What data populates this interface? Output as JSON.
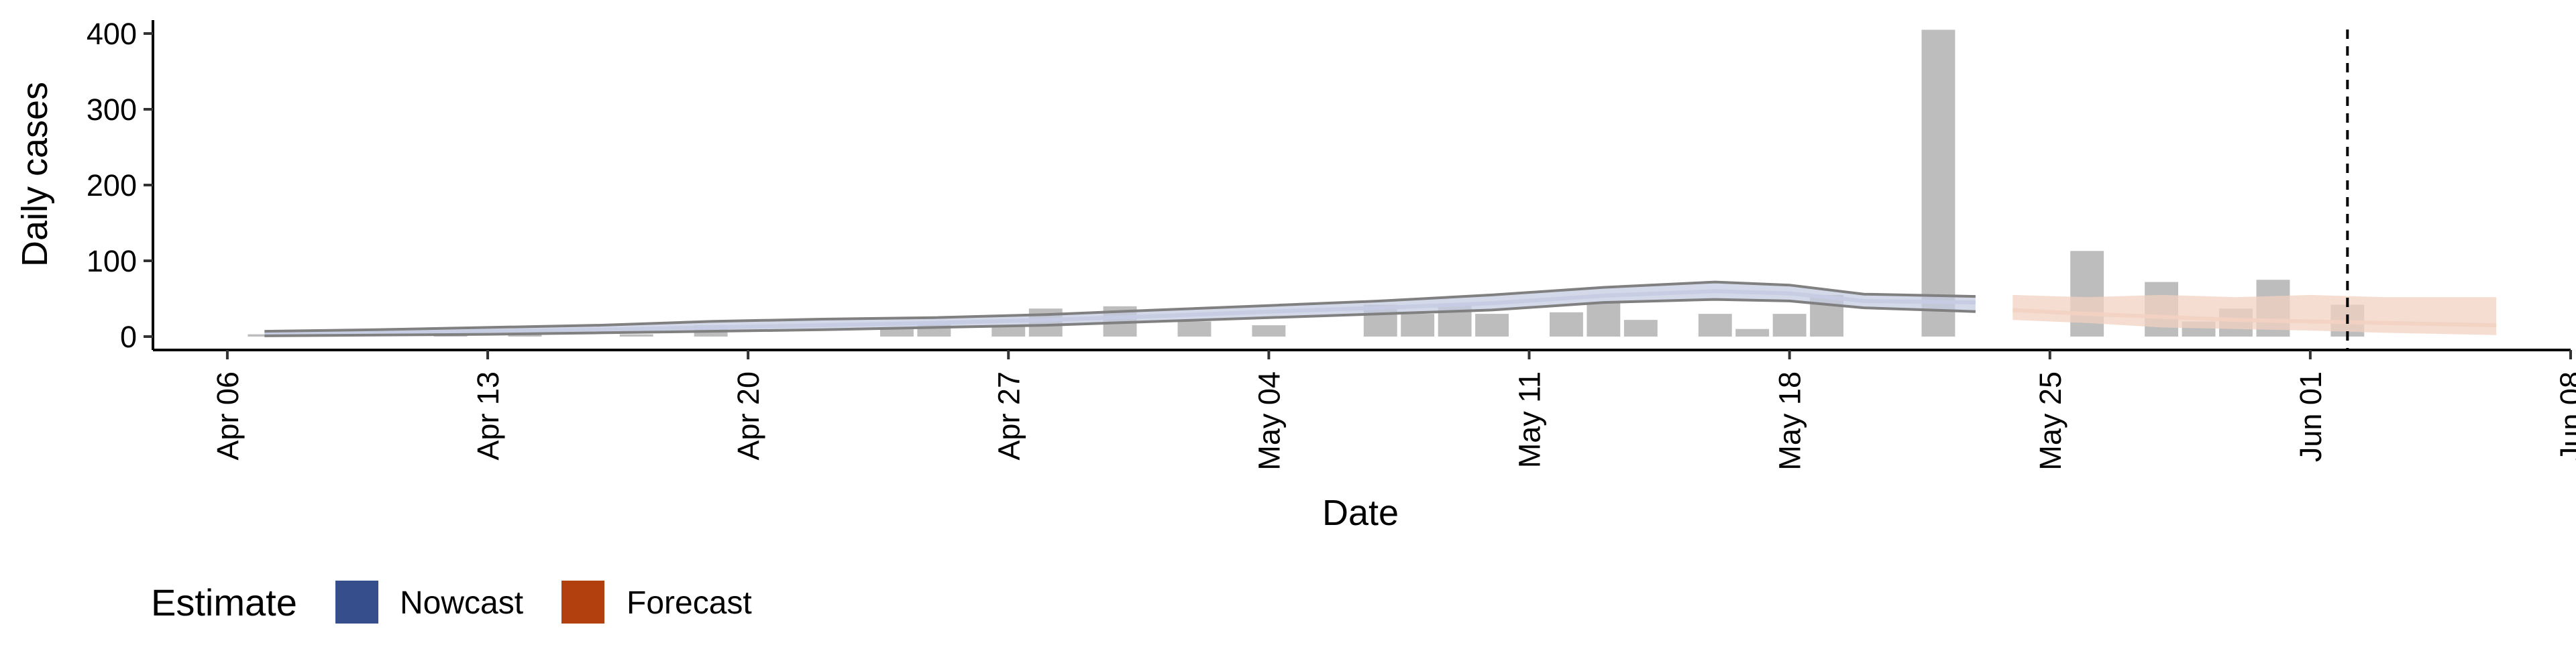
{
  "chart_data": {
    "type": "bar",
    "title": "",
    "xlabel": "Date",
    "ylabel": "Daily cases",
    "ylim": [
      0,
      420
    ],
    "xlim": [
      "2020-04-04",
      "2020-06-08"
    ],
    "grid": false,
    "legend_position": "bottom-left",
    "reference_line": {
      "date": "2020-06-02",
      "style": "dashed"
    },
    "x_ticks": [
      {
        "date": "2020-04-06",
        "label": "Apr 06"
      },
      {
        "date": "2020-04-13",
        "label": "Apr 13"
      },
      {
        "date": "2020-04-20",
        "label": "Apr 20"
      },
      {
        "date": "2020-04-27",
        "label": "Apr 27"
      },
      {
        "date": "2020-05-04",
        "label": "May 04"
      },
      {
        "date": "2020-05-11",
        "label": "May 11"
      },
      {
        "date": "2020-05-18",
        "label": "May 18"
      },
      {
        "date": "2020-05-25",
        "label": "May 25"
      },
      {
        "date": "2020-06-01",
        "label": "Jun 01"
      },
      {
        "date": "2020-06-08",
        "label": "Jun 08"
      }
    ],
    "y_ticks": [
      0,
      100,
      200,
      300,
      400
    ],
    "observed_cases": {
      "color": "#bdbdbd",
      "dates": [
        "2020-04-07",
        "2020-04-12",
        "2020-04-14",
        "2020-04-17",
        "2020-04-19",
        "2020-04-24",
        "2020-04-25",
        "2020-04-27",
        "2020-04-28",
        "2020-04-30",
        "2020-05-02",
        "2020-05-04",
        "2020-05-07",
        "2020-05-08",
        "2020-05-09",
        "2020-05-10",
        "2020-05-12",
        "2020-05-13",
        "2020-05-14",
        "2020-05-16",
        "2020-05-17",
        "2020-05-18",
        "2020-05-19",
        "2020-05-22",
        "2020-05-26",
        "2020-05-28",
        "2020-05-29",
        "2020-05-30",
        "2020-05-31",
        "2020-06-02"
      ],
      "values": [
        3,
        2,
        5,
        3,
        15,
        10,
        20,
        15,
        37,
        40,
        20,
        15,
        42,
        30,
        43,
        30,
        32,
        45,
        22,
        30,
        10,
        30,
        55,
        405,
        113,
        72,
        20,
        37,
        75,
        42
      ]
    },
    "series": [
      {
        "name": "Nowcast",
        "color": "#374e8c",
        "band_color": "#c5cce3",
        "dates": [
          "2020-04-07",
          "2020-04-10",
          "2020-04-13",
          "2020-04-16",
          "2020-04-19",
          "2020-04-22",
          "2020-04-25",
          "2020-04-28",
          "2020-05-01",
          "2020-05-04",
          "2020-05-07",
          "2020-05-10",
          "2020-05-13",
          "2020-05-16",
          "2020-05-18",
          "2020-05-20",
          "2020-05-23"
        ],
        "median": [
          4,
          5,
          7,
          9,
          12,
          15,
          18,
          22,
          27,
          33,
          38,
          44,
          54,
          60,
          57,
          47,
          45
        ],
        "upper": [
          7,
          9,
          12,
          15,
          20,
          23,
          25,
          29,
          35,
          41,
          47,
          55,
          65,
          72,
          68,
          56,
          53
        ],
        "lower": [
          1,
          2,
          3,
          5,
          7,
          9,
          12,
          15,
          20,
          25,
          30,
          35,
          45,
          49,
          47,
          38,
          33
        ]
      },
      {
        "name": "Forecast",
        "color": "#b2400e",
        "band_color": "#f3d2c2",
        "dates": [
          "2020-05-24",
          "2020-05-26",
          "2020-05-28",
          "2020-05-30",
          "2020-06-01",
          "2020-06-03",
          "2020-06-06"
        ],
        "median": [
          35,
          30,
          26,
          22,
          20,
          18,
          15
        ],
        "upper": [
          55,
          52,
          55,
          52,
          55,
          52,
          52
        ],
        "lower": [
          22,
          18,
          12,
          10,
          8,
          5,
          2
        ]
      }
    ],
    "legend": {
      "title": "Estimate",
      "entries": [
        {
          "label": "Nowcast",
          "color": "#374e8c"
        },
        {
          "label": "Forecast",
          "color": "#b2400e"
        }
      ]
    }
  }
}
